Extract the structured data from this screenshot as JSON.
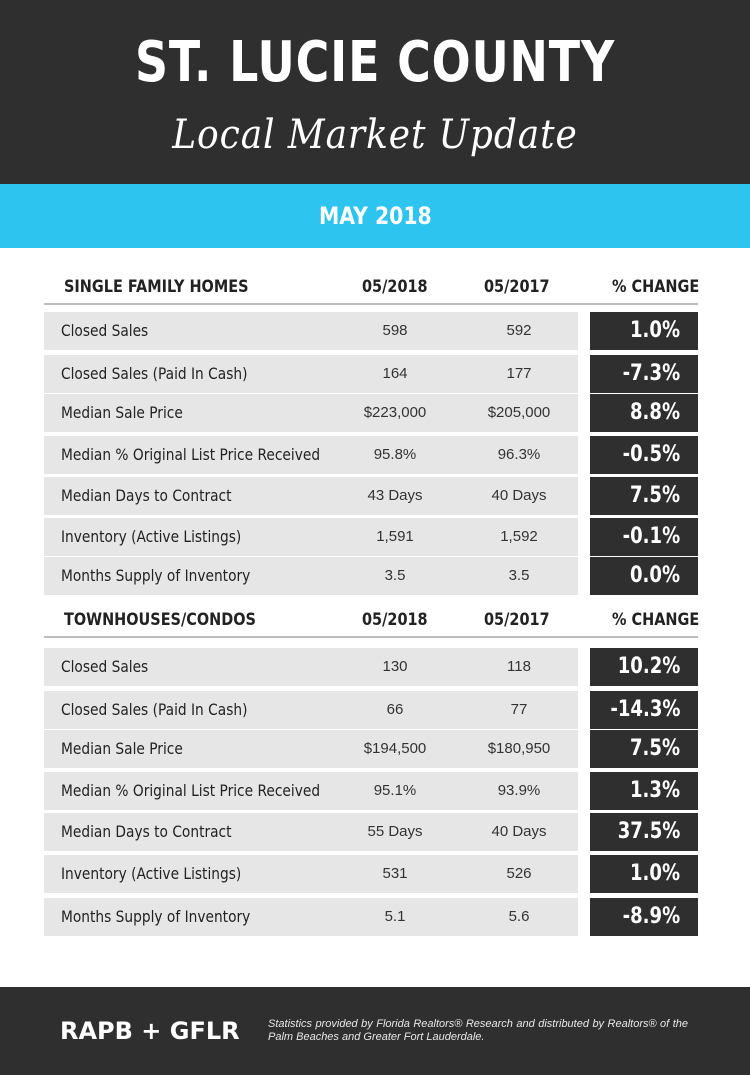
{
  "header": {
    "title": "ST. LUCIE COUNTY",
    "subtitle": "Local Market Update"
  },
  "period": "MAY 2018",
  "sections": [
    {
      "label": "SINGLE FAMILY HOMES",
      "col1": "05/2018",
      "col2": "05/2017",
      "col3": "% CHANGE",
      "rows": [
        {
          "label": "Closed Sales",
          "v1": "598",
          "v2": "592",
          "chg": "1.0%"
        },
        {
          "label": "Closed Sales (Paid In Cash)",
          "v1": "164",
          "v2": "177",
          "chg": "-7.3%"
        },
        {
          "label": "Median Sale Price",
          "v1": "$223,000",
          "v2": "$205,000",
          "chg": "8.8%"
        },
        {
          "label": "Median % Original List Price Received",
          "v1": "95.8%",
          "v2": "96.3%",
          "chg": "-0.5%"
        },
        {
          "label": "Median Days to Contract",
          "v1": "43 Days",
          "v2": "40 Days",
          "chg": "7.5%"
        },
        {
          "label": "Inventory (Active Listings)",
          "v1": "1,591",
          "v2": "1,592",
          "chg": "-0.1%"
        },
        {
          "label": "Months Supply of Inventory",
          "v1": "3.5",
          "v2": "3.5",
          "chg": "0.0%"
        }
      ]
    },
    {
      "label": "TOWNHOUSES/CONDOS",
      "col1": "05/2018",
      "col2": "05/2017",
      "col3": "% CHANGE",
      "rows": [
        {
          "label": "Closed Sales",
          "v1": "130",
          "v2": "118",
          "chg": "10.2%"
        },
        {
          "label": "Closed Sales (Paid In Cash)",
          "v1": "66",
          "v2": "77",
          "chg": "-14.3%"
        },
        {
          "label": "Median Sale Price",
          "v1": "$194,500",
          "v2": "$180,950",
          "chg": "7.5%"
        },
        {
          "label": "Median % Original List Price Received",
          "v1": "95.1%",
          "v2": "93.9%",
          "chg": "1.3%"
        },
        {
          "label": "Median Days to Contract",
          "v1": "55 Days",
          "v2": "40 Days",
          "chg": "37.5%"
        },
        {
          "label": "Inventory (Active Listings)",
          "v1": "531",
          "v2": "526",
          "chg": "1.0%"
        },
        {
          "label": "Months Supply of Inventory",
          "v1": "5.1",
          "v2": "5.6",
          "chg": "-8.9%"
        }
      ]
    }
  ],
  "footer": {
    "logo": "RAPB + GFLR",
    "note": "Statistics provided by Florida Realtors® Research and distributed by Realtors® of the Palm Beaches and Greater Fort Lauderdale."
  },
  "colors": {
    "dark": "#2f2f2f",
    "accent": "#2ec4f0",
    "row_bg": "#e6e6e6"
  }
}
